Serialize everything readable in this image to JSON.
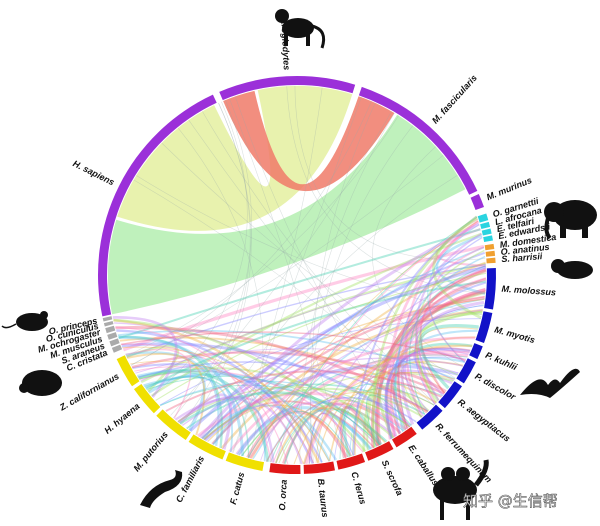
{
  "nodes": [
    {
      "label": "H. sapiens"
    },
    {
      "label": "P. troglodytes"
    },
    {
      "label": "M. fascicularis"
    },
    {
      "label": "M. murinus"
    },
    {
      "label": "O. garnettii"
    },
    {
      "label": "L. afrocana"
    },
    {
      "label": "E. telfairi"
    },
    {
      "label": "E. edwardsii"
    },
    {
      "label": "M. domestica"
    },
    {
      "label": "O. anatinus"
    },
    {
      "label": "S. harrisii"
    },
    {
      "label": "M. molossus"
    },
    {
      "label": "M. myotis"
    },
    {
      "label": "P. kuhlii"
    },
    {
      "label": "P. discolor"
    },
    {
      "label": "R. aegyptiacus"
    },
    {
      "label": "R. ferrumequinum"
    },
    {
      "label": "E. caballus"
    },
    {
      "label": "S. scrofa"
    },
    {
      "label": "C. ferus"
    },
    {
      "label": "B. taurus"
    },
    {
      "label": "O. orca"
    },
    {
      "label": "F. catus"
    },
    {
      "label": "C. familiaris"
    },
    {
      "label": "M. putorius"
    },
    {
      "label": "H. hyaena"
    },
    {
      "label": "Z. californianus"
    },
    {
      "label": "C. cristata"
    },
    {
      "label": "S. araneus"
    },
    {
      "label": "M. musculus"
    },
    {
      "label": "M. ochrogaster"
    },
    {
      "label": "O. cuniculus"
    },
    {
      "label": "O. princeps"
    }
  ],
  "watermark": "知乎 @生信帮"
}
